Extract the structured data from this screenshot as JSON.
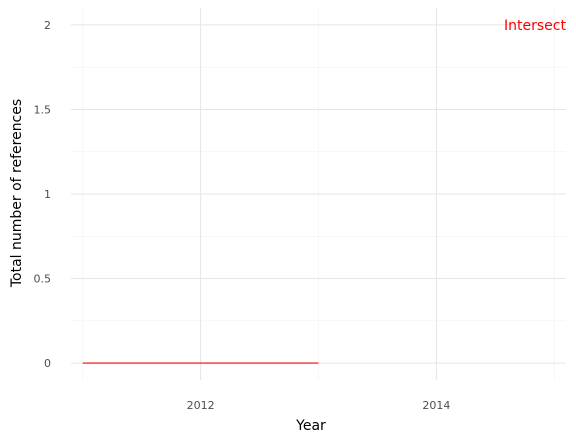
{
  "chart_data": {
    "type": "line",
    "xlabel": "Year",
    "ylabel": "Total number of references",
    "xlim": [
      2010.9,
      2015.1
    ],
    "ylim": [
      -0.1,
      2.1
    ],
    "x_ticks": [
      2012,
      2014
    ],
    "x_tick_labels": [
      "2012",
      "2014"
    ],
    "y_ticks": [
      0,
      0.5,
      1,
      1.5,
      2
    ],
    "y_tick_labels": [
      "0",
      "0.5",
      "1",
      "1.5",
      "2"
    ],
    "grid": true,
    "legend": "none",
    "series": [
      {
        "color": "#ff0000",
        "x": [
          2011,
          2013
        ],
        "y": [
          0,
          0
        ]
      }
    ],
    "annotations": [
      {
        "text": "Intersect",
        "color": "#ff0000",
        "x": 2015.1,
        "y": 2
      }
    ]
  }
}
